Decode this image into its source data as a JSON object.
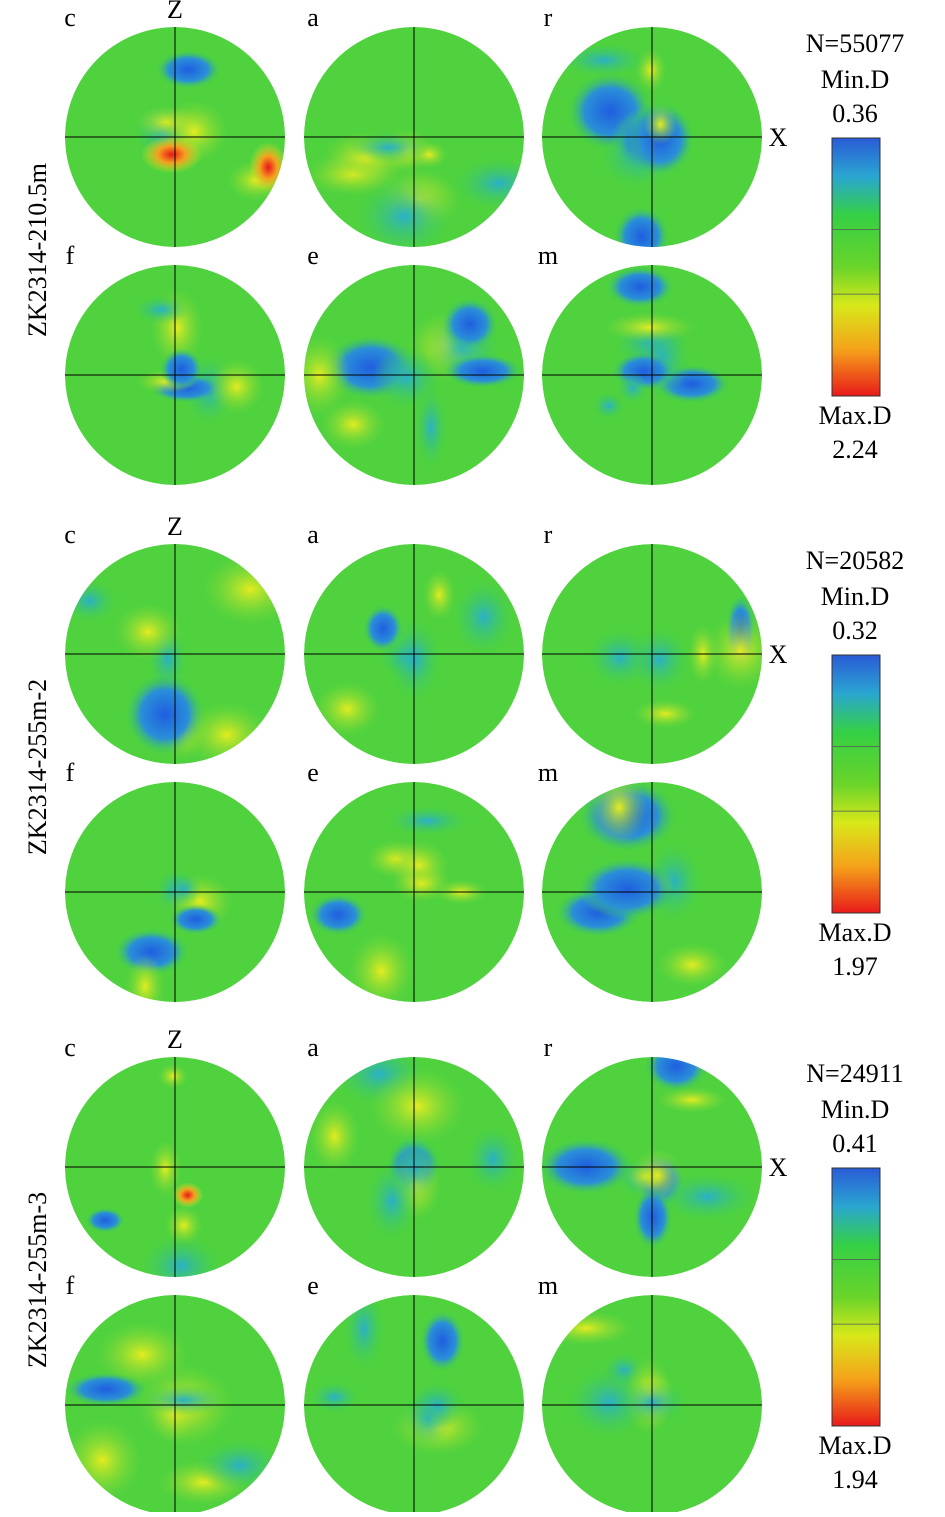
{
  "samples": [
    {
      "label": "ZK2314-210.5m",
      "n": "N=55077",
      "min_label": "Min.D",
      "min": "0.36",
      "max_label": "Max.D",
      "max": "2.24",
      "panels": [
        "c",
        "a",
        "r",
        "f",
        "e",
        "m"
      ],
      "z_label": "Z",
      "x_label": "X"
    },
    {
      "label": "ZK2314-255m-2",
      "n": "N=20582",
      "min_label": "Min.D",
      "min": "0.32",
      "max_label": "Max.D",
      "max": "1.97",
      "panels": [
        "c",
        "a",
        "r",
        "f",
        "e",
        "m"
      ],
      "z_label": "Z",
      "x_label": "X"
    },
    {
      "label": "ZK2314-255m-3",
      "n": "N=24911",
      "min_label": "Min.D",
      "min": "0.41",
      "max_label": "Max.D",
      "max": "1.94",
      "panels": [
        "c",
        "a",
        "r",
        "f",
        "e",
        "m"
      ],
      "z_label": "Z",
      "x_label": "X"
    }
  ]
}
